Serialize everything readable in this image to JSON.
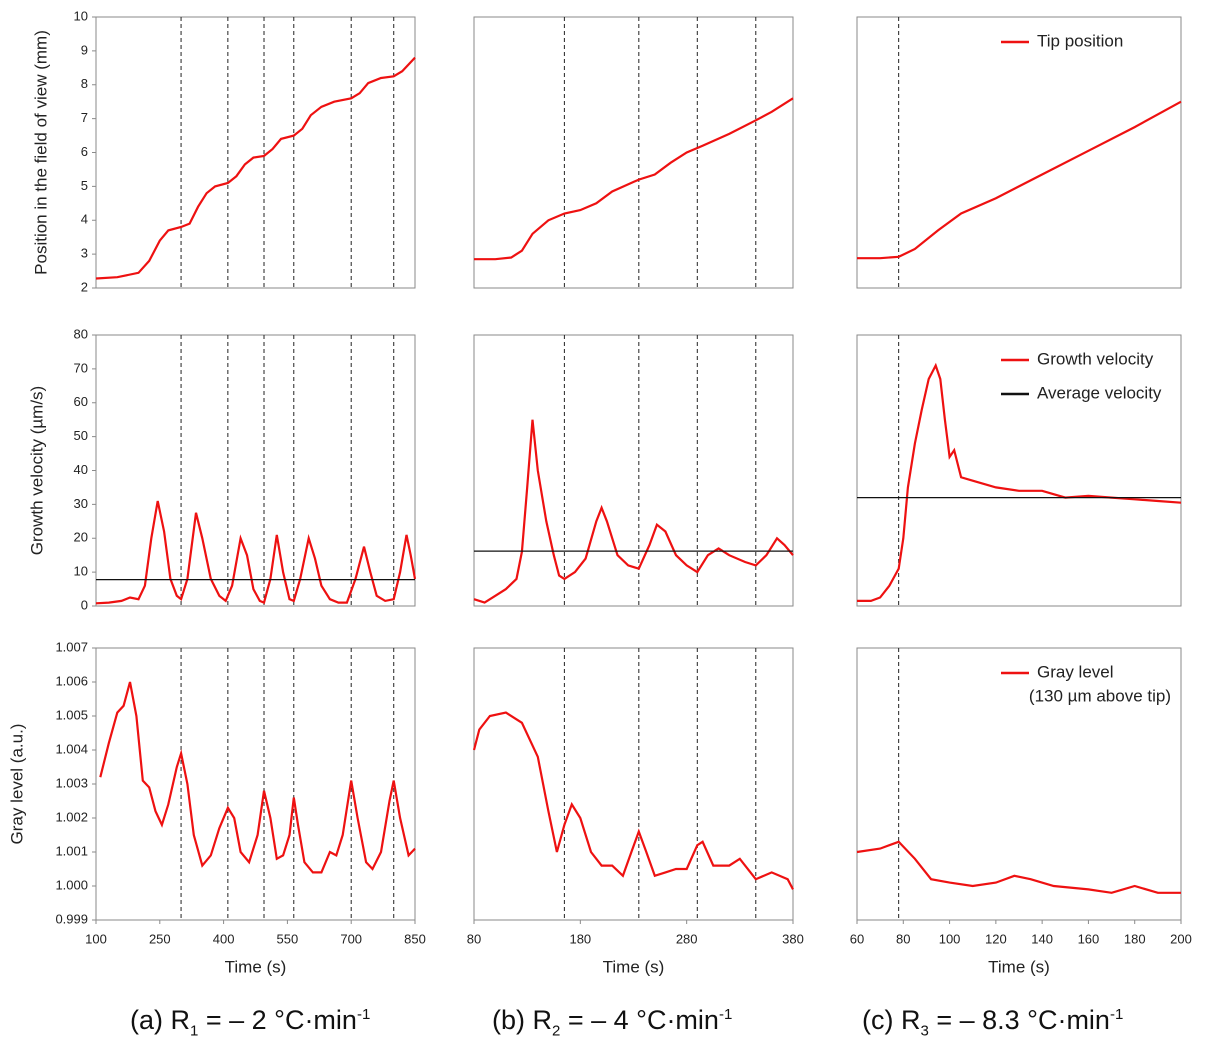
{
  "captions": [
    {
      "label": "(a) R",
      "sub": "1",
      "text": " = – 2 °C·min",
      "sup": "-1"
    },
    {
      "label": "(b) R",
      "sub": "2",
      "text": " = – 4 °C·min",
      "sup": "-1"
    },
    {
      "label": "(c) R",
      "sub": "3",
      "text": " = – 8.3 °C·min",
      "sup": "-1"
    }
  ],
  "chart_data": [
    {
      "type": "line",
      "ylabel": "Position in the field of view (mm)",
      "xlim": [
        100,
        850
      ],
      "ylim": [
        2,
        10
      ],
      "yticks": [
        2,
        3,
        4,
        5,
        6,
        7,
        8,
        9,
        10
      ],
      "vlines": [
        300,
        410,
        495,
        565,
        700,
        800
      ],
      "series": [
        {
          "color": "#ee1111",
          "x": [
            100,
            150,
            200,
            225,
            250,
            270,
            300,
            320,
            340,
            360,
            380,
            410,
            430,
            450,
            470,
            495,
            515,
            535,
            565,
            585,
            605,
            630,
            660,
            700,
            720,
            740,
            770,
            800,
            820,
            850
          ],
          "values": [
            2.28,
            2.32,
            2.45,
            2.8,
            3.4,
            3.7,
            3.8,
            3.9,
            4.4,
            4.8,
            5.0,
            5.1,
            5.3,
            5.65,
            5.85,
            5.9,
            6.1,
            6.4,
            6.5,
            6.7,
            7.1,
            7.35,
            7.5,
            7.6,
            7.75,
            8.05,
            8.2,
            8.25,
            8.4,
            8.8
          ]
        }
      ]
    },
    {
      "type": "line",
      "ylabel": "Growth velocity (µm/s)",
      "xlim": [
        100,
        850
      ],
      "ylim": [
        0,
        80
      ],
      "yticks": [
        0,
        10,
        20,
        30,
        40,
        50,
        60,
        70,
        80
      ],
      "vlines": [
        300,
        410,
        495,
        565,
        700,
        800
      ],
      "series": [
        {
          "color": "#ee1111",
          "x": [
            100,
            130,
            160,
            180,
            200,
            215,
            230,
            245,
            260,
            275,
            290,
            300,
            315,
            335,
            350,
            370,
            390,
            405,
            420,
            440,
            455,
            470,
            485,
            495,
            510,
            525,
            540,
            555,
            565,
            580,
            600,
            615,
            630,
            650,
            670,
            690,
            710,
            730,
            745,
            760,
            780,
            800,
            815,
            830,
            840,
            850
          ],
          "values": [
            0.8,
            1,
            1.5,
            2.5,
            2,
            6,
            20,
            31,
            22,
            8,
            3,
            2,
            8,
            27.5,
            20,
            8,
            3,
            1.5,
            6,
            20,
            15,
            5,
            1.5,
            1,
            8,
            21,
            10,
            2,
            1.5,
            8,
            20,
            14,
            6,
            2,
            1,
            1,
            8,
            17.5,
            10,
            3,
            1.5,
            2,
            10,
            21,
            15,
            8
          ]
        },
        {
          "color": "#111111",
          "x": [
            100,
            850
          ],
          "values": [
            7.8,
            7.8
          ]
        }
      ]
    },
    {
      "type": "line",
      "ylabel": "Gray level (a.u.)",
      "xlabel": "Time (s)",
      "xlim": [
        100,
        850
      ],
      "xticks": [
        100,
        250,
        400,
        550,
        700,
        850
      ],
      "ylim": [
        0.999,
        1.007
      ],
      "yticks": [
        0.999,
        {
          "value": 1,
          "label": "1.000"
        },
        1.001,
        1.002,
        1.003,
        1.004,
        1.005,
        1.006,
        1.007
      ],
      "vlines": [
        300,
        410,
        495,
        565,
        700,
        800
      ],
      "series": [
        {
          "color": "#ee1111",
          "x": [
            110,
            130,
            150,
            165,
            180,
            195,
            210,
            225,
            240,
            255,
            270,
            290,
            300,
            315,
            330,
            350,
            370,
            390,
            410,
            425,
            440,
            460,
            480,
            495,
            510,
            525,
            540,
            555,
            565,
            575,
            590,
            610,
            630,
            650,
            665,
            680,
            700,
            715,
            735,
            750,
            770,
            790,
            800,
            815,
            835,
            850
          ],
          "values": [
            1.0032,
            1.0042,
            1.0051,
            1.0053,
            1.006,
            1.005,
            1.0031,
            1.0029,
            1.0022,
            1.0018,
            1.0024,
            1.0035,
            1.0039,
            1.003,
            1.0015,
            1.0006,
            1.0009,
            1.0017,
            1.0023,
            1.002,
            1.001,
            1.0007,
            1.0015,
            1.0028,
            1.002,
            1.0008,
            1.0009,
            1.0015,
            1.0026,
            1.0018,
            1.0007,
            1.0004,
            1.0004,
            1.001,
            1.0009,
            1.0015,
            1.0031,
            1.002,
            1.0007,
            1.0005,
            1.001,
            1.0025,
            1.0031,
            1.002,
            1.0009,
            1.0011
          ]
        }
      ]
    },
    {
      "type": "line",
      "xlim": [
        80,
        380
      ],
      "ylim": [
        2,
        10
      ],
      "vlines": [
        165,
        235,
        290,
        345
      ],
      "series": [
        {
          "color": "#ee1111",
          "x": [
            80,
            100,
            115,
            125,
            135,
            150,
            165,
            180,
            195,
            210,
            235,
            250,
            265,
            280,
            295,
            320,
            345,
            360,
            380
          ],
          "values": [
            2.85,
            2.85,
            2.9,
            3.1,
            3.6,
            4.0,
            4.2,
            4.3,
            4.5,
            4.85,
            5.2,
            5.35,
            5.7,
            6.0,
            6.2,
            6.55,
            6.95,
            7.2,
            7.6
          ]
        }
      ]
    },
    {
      "type": "line",
      "xlim": [
        80,
        380
      ],
      "ylim": [
        0,
        80
      ],
      "vlines": [
        165,
        235,
        290,
        345
      ],
      "series": [
        {
          "color": "#ee1111",
          "x": [
            80,
            90,
            100,
            110,
            120,
            125,
            130,
            135,
            140,
            148,
            155,
            160,
            165,
            175,
            185,
            195,
            200,
            205,
            215,
            225,
            235,
            245,
            252,
            260,
            270,
            280,
            290,
            300,
            310,
            320,
            335,
            345,
            355,
            365,
            372,
            380
          ],
          "values": [
            2,
            1,
            3,
            5,
            8,
            16,
            35,
            55,
            40,
            25,
            15,
            9,
            8,
            10,
            14,
            25,
            29,
            25,
            15,
            12,
            11,
            18,
            24,
            22,
            15,
            12,
            10,
            15,
            17,
            15,
            13,
            12,
            15,
            20,
            18,
            15
          ]
        },
        {
          "color": "#111111",
          "x": [
            80,
            380
          ],
          "values": [
            16.2,
            16.2
          ]
        }
      ]
    },
    {
      "type": "line",
      "xlabel": "Time (s)",
      "xlim": [
        80,
        380
      ],
      "xticks": [
        80,
        180,
        280,
        380
      ],
      "ylim": [
        0.999,
        1.007
      ],
      "vlines": [
        165,
        235,
        290,
        345
      ],
      "series": [
        {
          "color": "#ee1111",
          "x": [
            80,
            85,
            95,
            110,
            125,
            140,
            150,
            158,
            165,
            172,
            180,
            190,
            200,
            210,
            220,
            228,
            235,
            242,
            250,
            260,
            270,
            280,
            290,
            295,
            305,
            320,
            330,
            345,
            360,
            375,
            380
          ],
          "values": [
            1.004,
            1.0046,
            1.005,
            1.0051,
            1.0048,
            1.0038,
            1.0022,
            1.001,
            1.0018,
            1.0024,
            1.002,
            1.001,
            1.0006,
            1.0006,
            1.0003,
            1.001,
            1.0016,
            1.001,
            1.0003,
            1.0004,
            1.0005,
            1.0005,
            1.0012,
            1.0013,
            1.0006,
            1.0006,
            1.0008,
            1.0002,
            1.0004,
            1.0002,
            0.9999
          ]
        }
      ]
    },
    {
      "type": "line",
      "xlim": [
        60,
        200
      ],
      "ylim": [
        2,
        10
      ],
      "vlines": [
        78
      ],
      "legend": "top-right",
      "series": [
        {
          "name": "Tip position",
          "color": "#ee1111",
          "x": [
            60,
            70,
            78,
            85,
            95,
            105,
            120,
            140,
            160,
            180,
            200
          ],
          "values": [
            2.88,
            2.88,
            2.92,
            3.15,
            3.7,
            4.2,
            4.65,
            5.35,
            6.05,
            6.75,
            7.5
          ]
        }
      ]
    },
    {
      "type": "line",
      "xlim": [
        60,
        200
      ],
      "ylim": [
        0,
        80
      ],
      "vlines": [
        78
      ],
      "legend": "top-right",
      "series": [
        {
          "name": "Growth velocity",
          "color": "#ee1111",
          "x": [
            60,
            66,
            70,
            74,
            78,
            80,
            82,
            85,
            88,
            91,
            94,
            96,
            98,
            100,
            102,
            105,
            110,
            120,
            130,
            140,
            150,
            160,
            170,
            180,
            190,
            200
          ],
          "values": [
            1.5,
            1.5,
            2.5,
            6,
            11,
            20,
            35,
            48,
            58,
            67,
            71,
            67,
            55,
            44,
            46,
            38,
            37,
            35,
            34,
            34,
            32,
            32.5,
            32,
            31.5,
            31,
            30.5
          ]
        },
        {
          "name": "Average velocity",
          "color": "#111111",
          "x": [
            60,
            200
          ],
          "values": [
            32,
            32
          ]
        }
      ]
    },
    {
      "type": "line",
      "xlabel": "Time (s)",
      "xlim": [
        60,
        200
      ],
      "xticks": [
        60,
        80,
        100,
        120,
        140,
        160,
        180,
        200
      ],
      "ylim": [
        0.999,
        1.007
      ],
      "vlines": [
        78
      ],
      "legend": "top-right",
      "series": [
        {
          "name": "Gray level",
          "note": "(130 µm above tip)",
          "color": "#ee1111",
          "x": [
            60,
            70,
            78,
            85,
            92,
            100,
            110,
            120,
            128,
            135,
            145,
            160,
            170,
            180,
            190,
            200
          ],
          "values": [
            1.001,
            1.0011,
            1.0013,
            1.0008,
            1.0002,
            1.0001,
            1.0,
            1.0001,
            1.0003,
            1.0002,
            1.0,
            0.9999,
            0.9998,
            1.0,
            0.9998,
            0.9998
          ]
        }
      ]
    }
  ]
}
